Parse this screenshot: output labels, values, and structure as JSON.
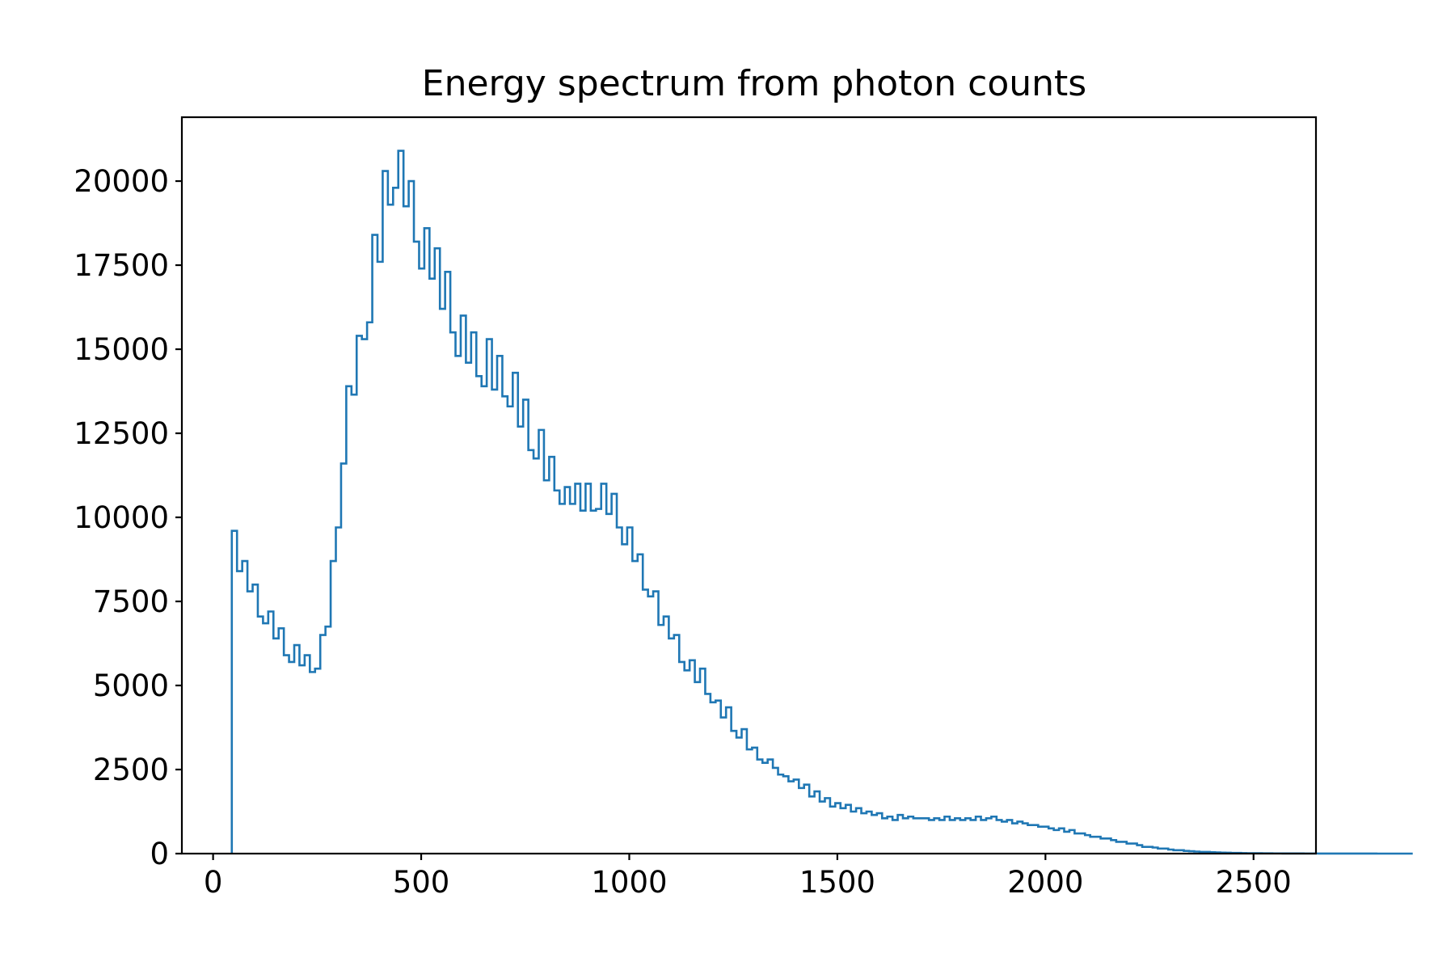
{
  "chart_data": {
    "type": "histogram",
    "title": "Energy spectrum from photon counts",
    "xlabel": "",
    "ylabel": "",
    "xlim": [
      -75,
      2650
    ],
    "ylim": [
      0,
      21900
    ],
    "x_ticks": [
      0,
      500,
      1000,
      1500,
      2000,
      2500
    ],
    "y_ticks": [
      0,
      2500,
      5000,
      7500,
      10000,
      12500,
      15000,
      17500,
      20000
    ],
    "histtype": "step",
    "grid": false,
    "legend": "none",
    "colors": {
      "line": "#1f77b4",
      "frame": "#000000",
      "background": "#ffffff"
    },
    "bin_start": 45,
    "bin_width": 12.5,
    "counts": [
      9600,
      8400,
      8700,
      7800,
      8000,
      7050,
      6850,
      7200,
      6400,
      6700,
      5900,
      5700,
      6200,
      5600,
      5900,
      5400,
      5500,
      6500,
      6750,
      8700,
      9700,
      11600,
      13900,
      13650,
      15400,
      15300,
      15800,
      18400,
      17600,
      20300,
      19300,
      19800,
      20900,
      19250,
      20000,
      18200,
      17400,
      18600,
      17100,
      18000,
      16200,
      17300,
      15500,
      14800,
      16000,
      14600,
      15500,
      14200,
      13900,
      15300,
      13800,
      14800,
      13600,
      13300,
      14300,
      12700,
      13500,
      12000,
      11750,
      12600,
      11100,
      11800,
      10800,
      10400,
      10900,
      10400,
      11000,
      10200,
      11000,
      10200,
      10250,
      11000,
      10100,
      10700,
      9700,
      9200,
      9700,
      8700,
      8900,
      7850,
      7650,
      7800,
      6800,
      7050,
      6400,
      6500,
      5700,
      5450,
      5750,
      5100,
      5500,
      4750,
      4500,
      4550,
      4050,
      4350,
      3650,
      3450,
      3700,
      3100,
      3150,
      2800,
      2700,
      2800,
      2550,
      2350,
      2300,
      2150,
      2200,
      1950,
      2050,
      1700,
      1850,
      1550,
      1650,
      1400,
      1500,
      1350,
      1450,
      1250,
      1350,
      1200,
      1250,
      1150,
      1200,
      1050,
      1100,
      1000,
      1150,
      1050,
      1100,
      1050,
      1050,
      1050,
      1000,
      1050,
      1000,
      1100,
      1000,
      1050,
      1000,
      1050,
      1000,
      1100,
      1000,
      1050,
      1100,
      1000,
      950,
      1000,
      900,
      950,
      900,
      850,
      850,
      800,
      800,
      750,
      700,
      750,
      650,
      700,
      600,
      600,
      550,
      500,
      500,
      450,
      450,
      400,
      350,
      350,
      300,
      300,
      250,
      200,
      200,
      180,
      150,
      150,
      120,
      100,
      100,
      80,
      70,
      60,
      50,
      50,
      40,
      35,
      30,
      25,
      20,
      20,
      15,
      12,
      10,
      10,
      8,
      8,
      6,
      6,
      5,
      5,
      4,
      4,
      3,
      3,
      3,
      2,
      2,
      2,
      2,
      1,
      1,
      1,
      1,
      1,
      1,
      1,
      0,
      0,
      0,
      0,
      0,
      0,
      0
    ]
  }
}
